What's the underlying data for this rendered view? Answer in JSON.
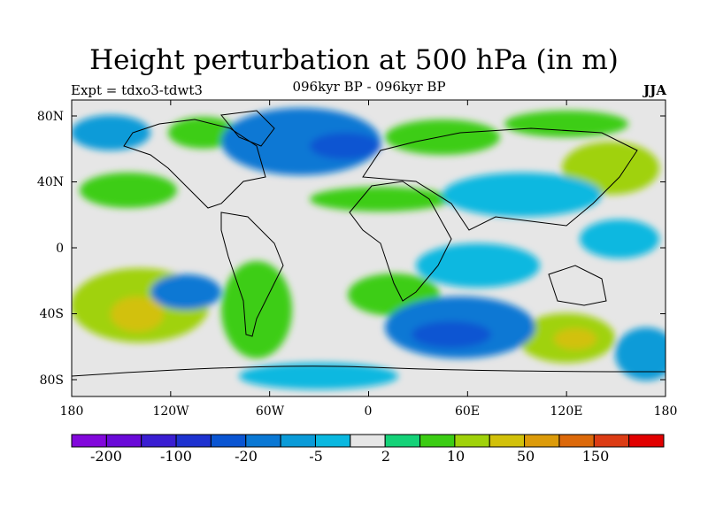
{
  "header": {
    "title": "Height perturbation at 500 hPa (in m)",
    "subtitle": "096kyr BP - 096kyr BP",
    "left_label": "Expt = tdxo3-tdwt3",
    "right_label": "JJA"
  },
  "map": {
    "lat_labels": [
      "80N",
      "40N",
      "0",
      "40S",
      "80S"
    ],
    "lon_labels": [
      "180",
      "120W",
      "60W",
      "0",
      "60E",
      "120E",
      "180"
    ],
    "background_color": "#e6e6e6"
  },
  "colorbar": {
    "colors": [
      "#8208db",
      "#6a0ad8",
      "#3a1ed2",
      "#1e32d0",
      "#0a55d2",
      "#0a78d4",
      "#0a9bd8",
      "#0ab8e0",
      "#e6e6e6",
      "#14d278",
      "#3ccd14",
      "#a0d20a",
      "#d2c10a",
      "#dc9b0a",
      "#dc690a",
      "#dc3c14",
      "#e10000"
    ],
    "labels": [
      "-200",
      "-100",
      "-20",
      "-5",
      "2",
      "10",
      "50",
      "150"
    ]
  }
}
